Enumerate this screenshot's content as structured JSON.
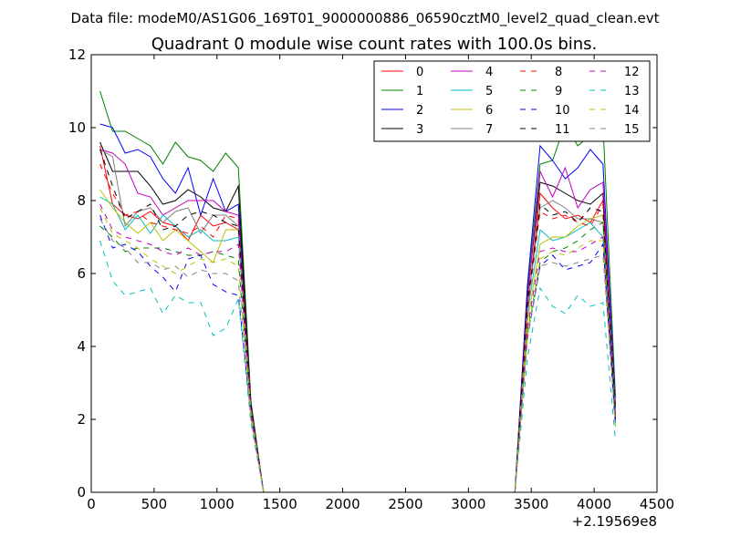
{
  "chart_data": {
    "type": "line",
    "suptitle": "Data file: modeM0/AS1G06_169T01_9000000886_06590cztM0_level2_quad_clean.evt",
    "title": "Quadrant 0 module wise count rates with 100.0s bins.",
    "xlabel": "",
    "ylabel": "",
    "x_offset_label": "+2.19569e8",
    "xlim": [
      0,
      4500
    ],
    "ylim": [
      0,
      12
    ],
    "x_ticks": [
      0,
      500,
      1000,
      1500,
      2000,
      2500,
      3000,
      3500,
      4000,
      4500
    ],
    "y_ticks": [
      0,
      2,
      4,
      6,
      8,
      10,
      12
    ],
    "legend": {
      "placement": "top-right",
      "columns": 4
    },
    "x": [
      70,
      170,
      270,
      370,
      470,
      570,
      670,
      770,
      870,
      970,
      1070,
      1170,
      1270,
      1370,
      1470,
      1570,
      1670,
      1770,
      1870,
      1970,
      2070,
      2170,
      2270,
      2370,
      2470,
      2570,
      2670,
      2770,
      2870,
      2970,
      3070,
      3170,
      3270,
      3370,
      3470,
      3570,
      3670,
      3770,
      3870,
      3970,
      4070,
      4170
    ],
    "series": [
      {
        "name": "0",
        "color": "#ff0000",
        "dash": "solid",
        "values": [
          9.5,
          7.9,
          7.6,
          7.5,
          7.7,
          7.4,
          7.3,
          6.9,
          7.6,
          7.3,
          7.4,
          7.2,
          2.3,
          0,
          0,
          0,
          0,
          0,
          0,
          0,
          0,
          0,
          0,
          0,
          0,
          0,
          0,
          0,
          0,
          0,
          0,
          0,
          0,
          0,
          5.0,
          8.2,
          7.8,
          7.5,
          7.6,
          7.4,
          8.0,
          2.0
        ]
      },
      {
        "name": "1",
        "color": "#008000",
        "dash": "solid",
        "values": [
          11.0,
          9.9,
          9.9,
          9.7,
          9.5,
          9.0,
          9.6,
          9.2,
          9.1,
          8.8,
          9.3,
          8.9,
          2.5,
          0,
          0,
          0,
          0,
          0,
          0,
          0,
          0,
          0,
          0,
          0,
          0,
          0,
          0,
          0,
          0,
          0,
          0,
          0,
          0,
          0,
          5.6,
          9.0,
          9.1,
          10.1,
          9.5,
          9.8,
          10.1,
          2.6
        ]
      },
      {
        "name": "2",
        "color": "#0000ff",
        "dash": "solid",
        "values": [
          10.1,
          10.0,
          9.3,
          9.4,
          9.2,
          8.6,
          8.2,
          8.9,
          7.6,
          8.6,
          7.7,
          7.9,
          2.4,
          0,
          0,
          0,
          0,
          0,
          0,
          0,
          0,
          0,
          0,
          0,
          0,
          0,
          0,
          0,
          0,
          0,
          0,
          0,
          0,
          0,
          5.7,
          9.5,
          9.1,
          8.6,
          8.9,
          9.4,
          9.0,
          2.4
        ]
      },
      {
        "name": "3",
        "color": "#000000",
        "dash": "solid",
        "values": [
          9.6,
          8.8,
          8.8,
          8.8,
          8.4,
          7.9,
          8.0,
          8.3,
          8.1,
          7.8,
          7.7,
          8.4,
          2.4,
          0,
          0,
          0,
          0,
          0,
          0,
          0,
          0,
          0,
          0,
          0,
          0,
          0,
          0,
          0,
          0,
          0,
          0,
          0,
          0,
          0,
          5.4,
          8.5,
          8.4,
          8.2,
          8.0,
          7.9,
          8.2,
          2.3
        ]
      },
      {
        "name": "4",
        "color": "#bf00bf",
        "dash": "solid",
        "values": [
          9.4,
          9.3,
          9.0,
          8.2,
          8.1,
          7.6,
          7.8,
          8.0,
          8.0,
          8.0,
          7.7,
          7.6,
          2.3,
          0,
          0,
          0,
          0,
          0,
          0,
          0,
          0,
          0,
          0,
          0,
          0,
          0,
          0,
          0,
          0,
          0,
          0,
          0,
          0,
          0,
          5.3,
          8.8,
          8.1,
          8.9,
          7.8,
          8.3,
          8.5,
          2.2
        ]
      },
      {
        "name": "5",
        "color": "#00bfbf",
        "dash": "solid",
        "values": [
          8.1,
          7.9,
          7.2,
          7.6,
          7.1,
          7.6,
          7.3,
          7.0,
          7.2,
          6.9,
          6.9,
          7.0,
          2.2,
          0,
          0,
          0,
          0,
          0,
          0,
          0,
          0,
          0,
          0,
          0,
          0,
          0,
          0,
          0,
          0,
          0,
          0,
          0,
          0,
          0,
          4.9,
          7.2,
          6.9,
          7.0,
          7.2,
          7.4,
          7.0,
          2.1
        ]
      },
      {
        "name": "6",
        "color": "#bfbf00",
        "dash": "solid",
        "values": [
          8.3,
          7.8,
          7.4,
          7.1,
          7.4,
          6.9,
          7.2,
          6.9,
          6.6,
          6.3,
          7.2,
          7.2,
          2.2,
          0,
          0,
          0,
          0,
          0,
          0,
          0,
          0,
          0,
          0,
          0,
          0,
          0,
          0,
          0,
          0,
          0,
          0,
          0,
          0,
          0,
          4.7,
          6.8,
          7.0,
          7.0,
          7.3,
          7.5,
          7.6,
          2.1
        ]
      },
      {
        "name": "7",
        "color": "#808080",
        "dash": "solid",
        "values": [
          9.4,
          9.2,
          7.3,
          7.7,
          7.8,
          7.4,
          7.7,
          7.8,
          7.1,
          7.6,
          7.6,
          7.3,
          2.3,
          0,
          0,
          0,
          0,
          0,
          0,
          0,
          0,
          0,
          0,
          0,
          0,
          0,
          0,
          0,
          0,
          0,
          0,
          0,
          0,
          0,
          5.1,
          7.8,
          8.0,
          7.8,
          7.5,
          7.5,
          7.4,
          2.3
        ]
      },
      {
        "name": "8",
        "color": "#ff0000",
        "dash": "dashed",
        "values": [
          9.0,
          8.2,
          7.6,
          7.7,
          7.4,
          7.3,
          7.2,
          7.1,
          7.3,
          7.0,
          7.6,
          7.5,
          2.3,
          0,
          0,
          0,
          0,
          0,
          0,
          0,
          0,
          0,
          0,
          0,
          0,
          0,
          0,
          0,
          0,
          0,
          0,
          0,
          0,
          0,
          5.0,
          7.7,
          7.5,
          7.6,
          7.4,
          7.3,
          7.9,
          2.1
        ]
      },
      {
        "name": "9",
        "color": "#008000",
        "dash": "dashed",
        "values": [
          7.3,
          7.0,
          6.6,
          6.7,
          6.7,
          6.7,
          6.6,
          6.5,
          6.5,
          6.6,
          6.5,
          6.4,
          2.1,
          0,
          0,
          0,
          0,
          0,
          0,
          0,
          0,
          0,
          0,
          0,
          0,
          0,
          0,
          0,
          0,
          0,
          0,
          0,
          0,
          0,
          4.4,
          6.3,
          6.6,
          6.7,
          6.9,
          7.2,
          7.4,
          2.0
        ]
      },
      {
        "name": "10",
        "color": "#0000ff",
        "dash": "dashed",
        "values": [
          7.6,
          6.7,
          6.8,
          6.6,
          6.2,
          5.9,
          5.5,
          6.4,
          6.5,
          5.7,
          5.5,
          5.4,
          2.1,
          0,
          0,
          0,
          0,
          0,
          0,
          0,
          0,
          0,
          0,
          0,
          0,
          0,
          0,
          0,
          0,
          0,
          0,
          0,
          0,
          0,
          4.3,
          6.2,
          6.5,
          6.1,
          6.2,
          6.3,
          6.8,
          1.8
        ]
      },
      {
        "name": "11",
        "color": "#000000",
        "dash": "dashed",
        "values": [
          9.4,
          8.4,
          7.5,
          7.7,
          7.9,
          7.2,
          7.3,
          7.6,
          7.7,
          7.6,
          7.4,
          7.3,
          2.3,
          0,
          0,
          0,
          0,
          0,
          0,
          0,
          0,
          0,
          0,
          0,
          0,
          0,
          0,
          0,
          0,
          0,
          0,
          0,
          0,
          0,
          5.2,
          7.9,
          7.6,
          7.7,
          7.4,
          7.8,
          7.7,
          2.2
        ]
      },
      {
        "name": "12",
        "color": "#bf00bf",
        "dash": "dashed",
        "values": [
          7.9,
          7.2,
          7.0,
          6.9,
          6.8,
          6.6,
          6.5,
          6.7,
          6.5,
          6.6,
          6.6,
          6.8,
          2.2,
          0,
          0,
          0,
          0,
          0,
          0,
          0,
          0,
          0,
          0,
          0,
          0,
          0,
          0,
          0,
          0,
          0,
          0,
          0,
          0,
          0,
          4.5,
          6.6,
          6.7,
          6.6,
          6.6,
          6.8,
          7.0,
          1.9
        ]
      },
      {
        "name": "13",
        "color": "#00bfbf",
        "dash": "dashed",
        "values": [
          6.9,
          5.8,
          5.4,
          5.5,
          5.6,
          4.9,
          5.4,
          5.2,
          5.2,
          4.3,
          4.5,
          5.3,
          1.9,
          0,
          0,
          0,
          0,
          0,
          0,
          0,
          0,
          0,
          0,
          0,
          0,
          0,
          0,
          0,
          0,
          0,
          0,
          0,
          0,
          0,
          3.7,
          5.6,
          5.1,
          4.9,
          5.4,
          5.1,
          5.2,
          1.4
        ]
      },
      {
        "name": "14",
        "color": "#bfbf00",
        "dash": "dashed",
        "values": [
          7.8,
          7.1,
          6.9,
          6.7,
          6.4,
          6.2,
          6.0,
          6.2,
          6.4,
          6.3,
          6.4,
          6.2,
          2.1,
          0,
          0,
          0,
          0,
          0,
          0,
          0,
          0,
          0,
          0,
          0,
          0,
          0,
          0,
          0,
          0,
          0,
          0,
          0,
          0,
          0,
          4.3,
          6.4,
          6.6,
          6.5,
          6.7,
          6.9,
          6.9,
          1.8
        ]
      },
      {
        "name": "15",
        "color": "#808080",
        "dash": "dashed",
        "values": [
          7.5,
          6.9,
          6.7,
          6.3,
          6.3,
          6.1,
          6.2,
          5.9,
          6.1,
          6.0,
          6.0,
          5.8,
          2.0,
          0,
          0,
          0,
          0,
          0,
          0,
          0,
          0,
          0,
          0,
          0,
          0,
          0,
          0,
          0,
          0,
          0,
          0,
          0,
          0,
          0,
          4.2,
          6.2,
          6.3,
          6.2,
          6.3,
          6.4,
          6.5,
          1.9
        ]
      }
    ]
  }
}
